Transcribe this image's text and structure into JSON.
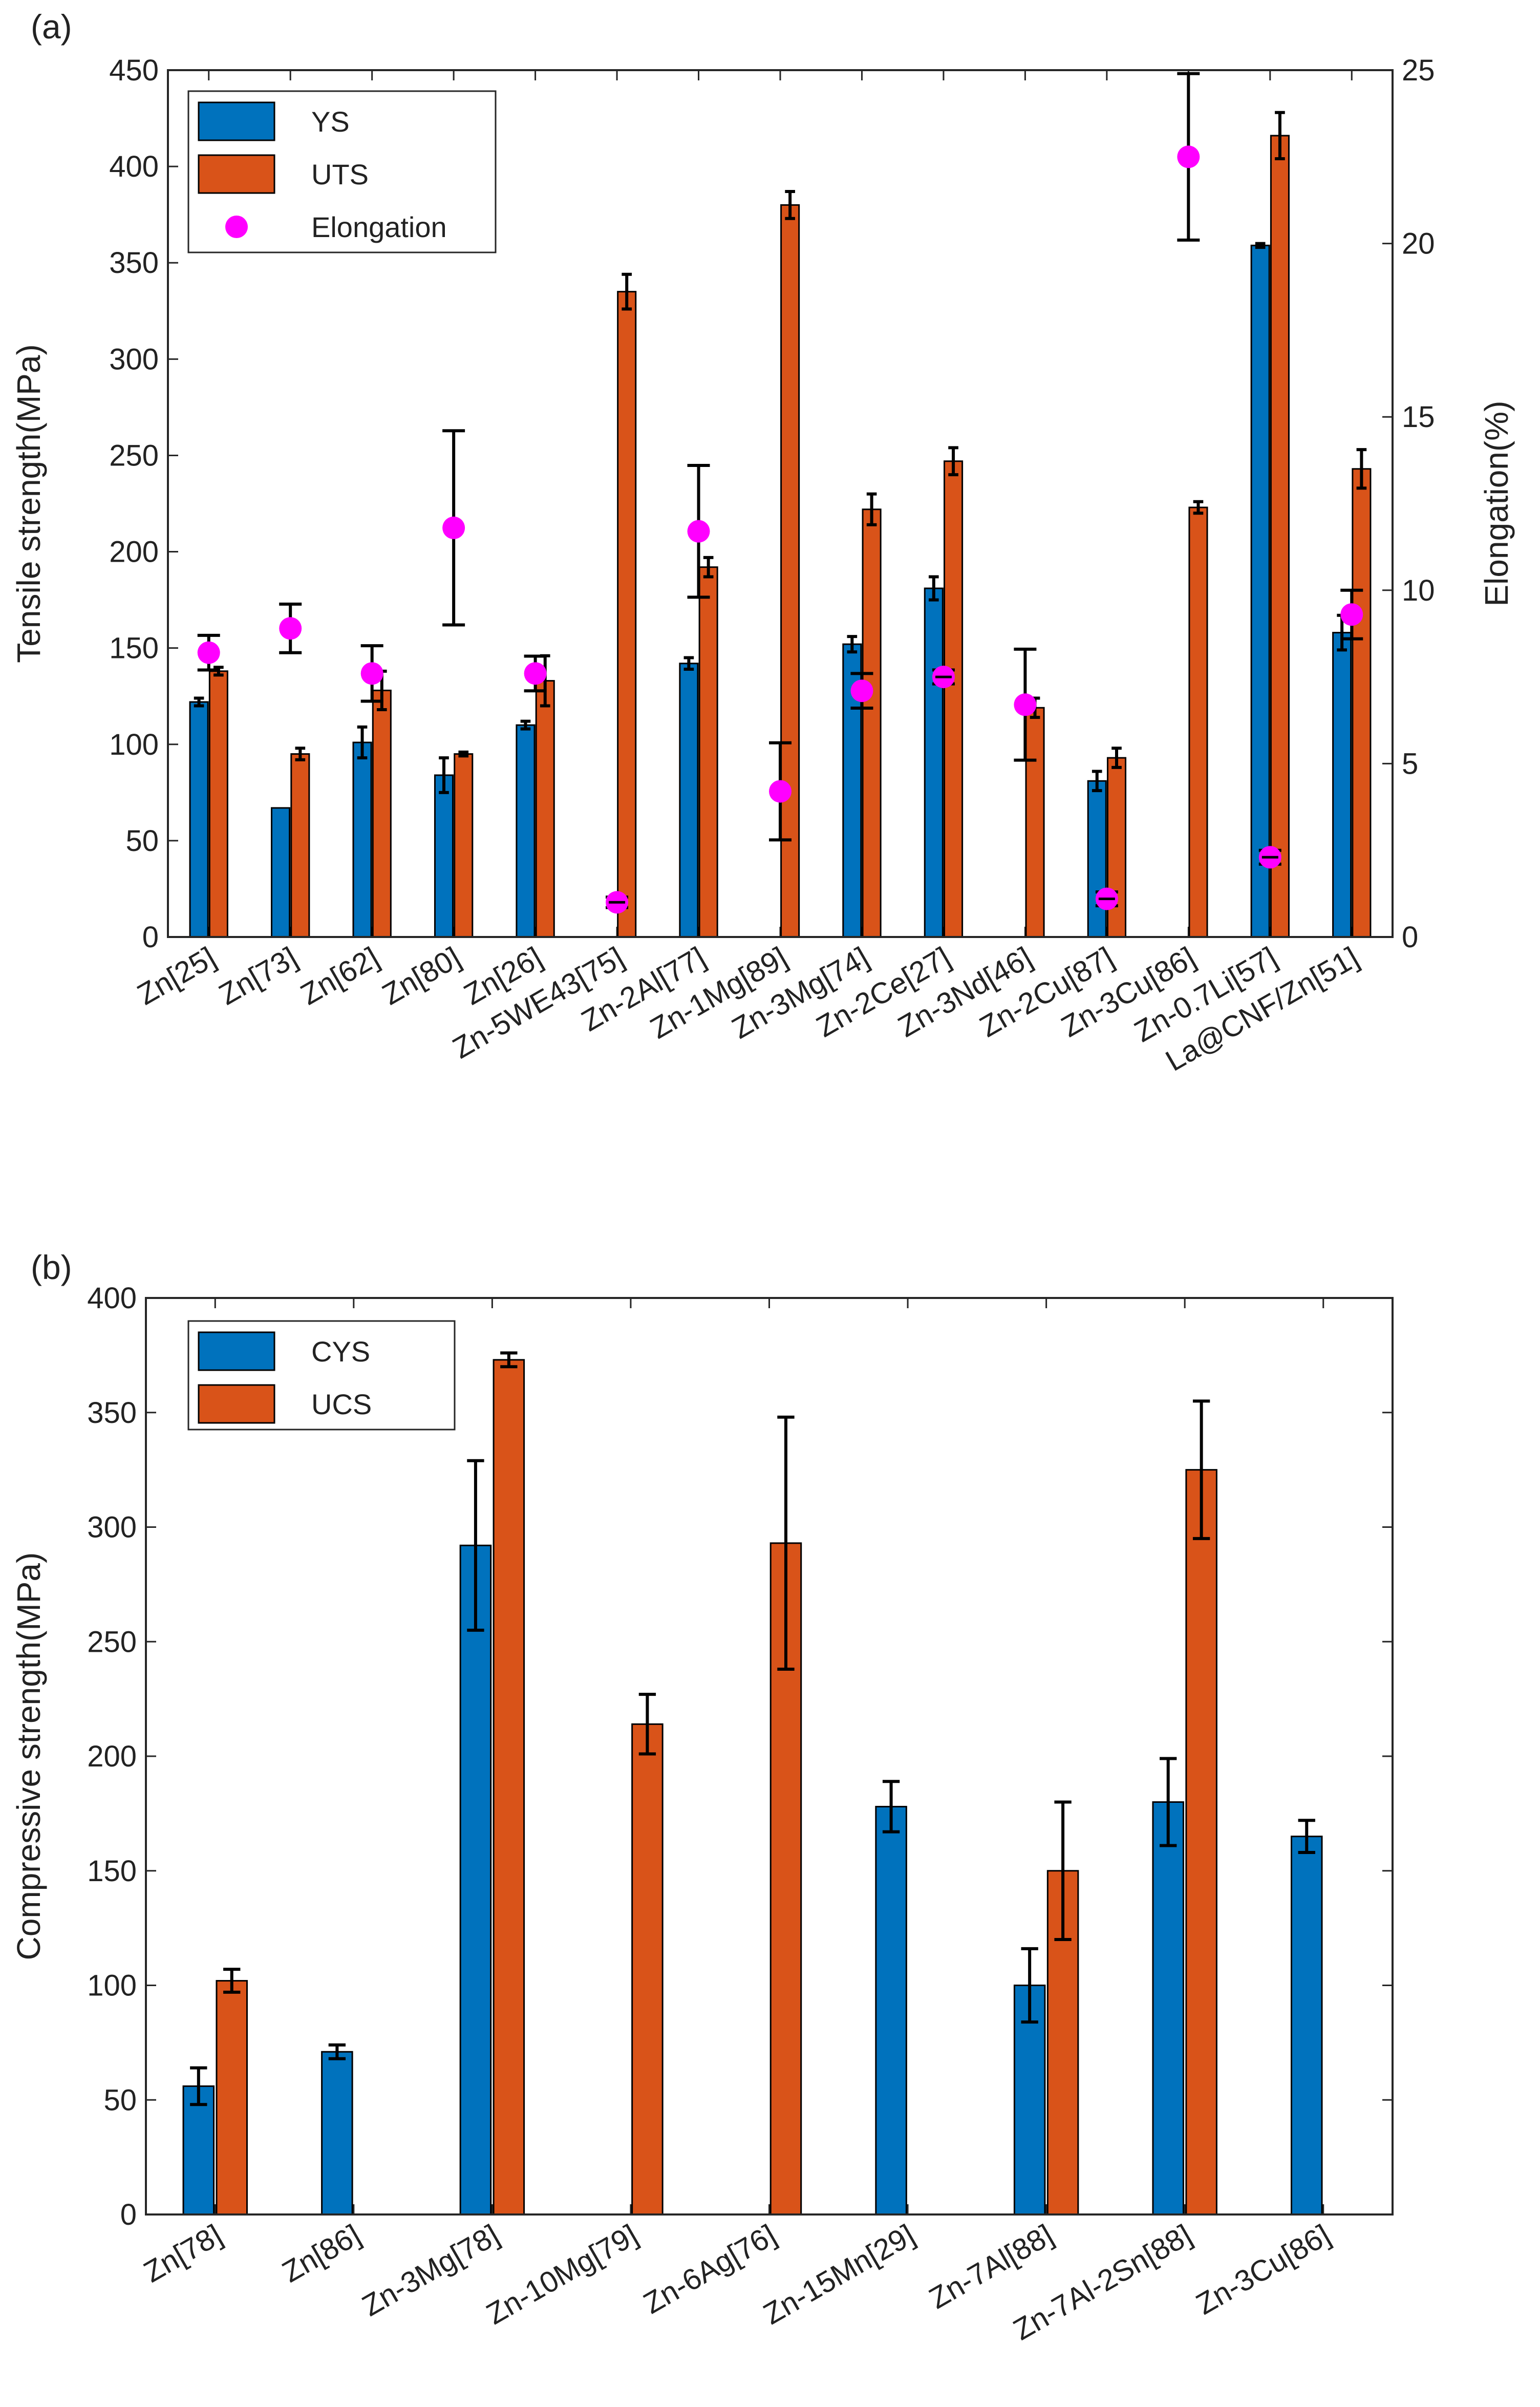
{
  "colors": {
    "ys": "#0072BD",
    "uts": "#D95319",
    "elong": "#FF00FF",
    "err": "#000000",
    "axis": "#262626"
  },
  "chart_data": [
    {
      "panel": "(a)",
      "type": "bar",
      "ylabel": "Tensile strength(MPa)",
      "y2label": "Elongation(%)",
      "ylim": [
        0,
        450
      ],
      "y2lim": [
        0,
        25
      ],
      "yticks": [
        "0",
        "50",
        "100",
        "150",
        "200",
        "250",
        "300",
        "350",
        "400",
        "450"
      ],
      "y2ticks": [
        "0",
        "5",
        "10",
        "15",
        "20",
        "25"
      ],
      "categories": [
        "Zn[25]",
        "Zn[73]",
        "Zn[62]",
        "Zn[80]",
        "Zn[26]",
        "Zn-5WE43[75]",
        "Zn-2Al[77]",
        "Zn-1Mg[89]",
        "Zn-3Mg[74]",
        "Zn-2Ce[27]",
        "Zn-3Nd[46]",
        "Zn-2Cu[87]",
        "Zn-3Cu[86]",
        "Zn-0.7Li[57]",
        "La@CNF/Zn[51]"
      ],
      "legend": [
        "YS",
        "UTS",
        "Elongation"
      ],
      "series": [
        {
          "name": "YS",
          "values": [
            122,
            67,
            101,
            84,
            110,
            null,
            142,
            null,
            152,
            181,
            null,
            81,
            null,
            359,
            158
          ],
          "errors": [
            2,
            0,
            8,
            9,
            2,
            null,
            3,
            null,
            4,
            6,
            null,
            5,
            null,
            1,
            9
          ]
        },
        {
          "name": "UTS",
          "values": [
            138,
            95,
            128,
            95,
            133,
            335,
            192,
            380,
            222,
            247,
            119,
            93,
            223,
            416,
            243
          ],
          "errors": [
            2,
            3,
            10,
            1,
            13,
            9,
            5,
            7,
            8,
            7,
            5,
            5,
            3,
            12,
            10
          ]
        },
        {
          "name": "Elongation",
          "axis": "right",
          "values": [
            8.2,
            8.9,
            7.6,
            11.8,
            7.6,
            1.0,
            11.7,
            4.2,
            7.1,
            7.5,
            6.7,
            1.1,
            22.5,
            2.3,
            9.3
          ],
          "errors": [
            0.5,
            0.7,
            0.8,
            2.8,
            0.5,
            0.15,
            1.9,
            1.4,
            0.5,
            0.2,
            1.6,
            0.2,
            2.4,
            0.2,
            0.7
          ]
        }
      ]
    },
    {
      "panel": "(b)",
      "type": "bar",
      "ylabel": "Compressive strength(MPa)",
      "ylim": [
        0,
        400
      ],
      "yticks": [
        "0",
        "50",
        "100",
        "150",
        "200",
        "250",
        "300",
        "350",
        "400"
      ],
      "categories": [
        "Zn[78]",
        "Zn[86]",
        "Zn-3Mg[78]",
        "Zn-10Mg[79]",
        "Zn-6Ag[76]",
        "Zn-15Mn[29]",
        "Zn-7Al[88]",
        "Zn-7Al-2Sn[88]",
        "Zn-3Cu[86]"
      ],
      "legend": [
        "CYS",
        "UCS"
      ],
      "series": [
        {
          "name": "CYS",
          "values": [
            56,
            71,
            292,
            0,
            0,
            178,
            100,
            180,
            165
          ],
          "errors": [
            8,
            3,
            37,
            null,
            null,
            11,
            16,
            19,
            7
          ]
        },
        {
          "name": "UCS",
          "values": [
            102,
            0,
            373,
            214,
            293,
            0,
            150,
            325,
            0
          ],
          "errors": [
            5,
            null,
            3,
            13,
            55,
            null,
            30,
            30,
            null
          ]
        }
      ]
    }
  ]
}
